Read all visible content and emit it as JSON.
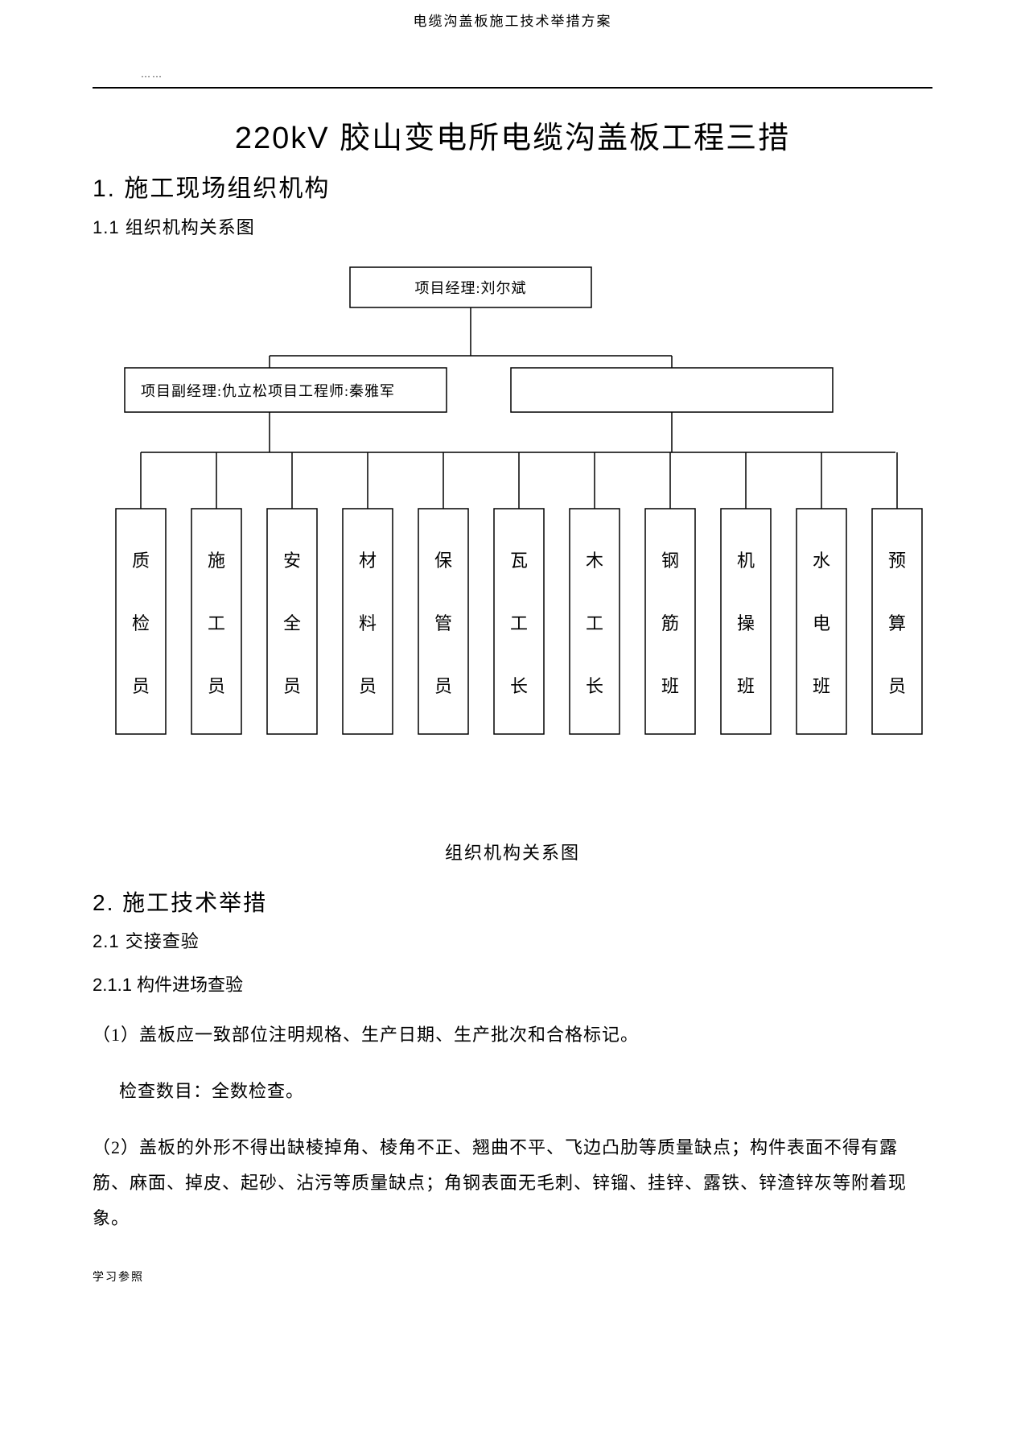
{
  "header": "电缆沟盖板施工技术举措方案",
  "dots": "……",
  "main_title_prefix": "220kV ",
  "main_title_rest": "胶山变电所电缆沟盖板工程三措",
  "s1": {
    "title": "1.  施工现场组织机构",
    "h2": "1.1 组织机构关系图"
  },
  "chart": {
    "top": "项目经理:刘尔斌",
    "mid_left": "项目副经理:仇立松项目工程师:秦雅军",
    "leaves": [
      [
        "质",
        "检",
        "员"
      ],
      [
        "施",
        "工",
        "员"
      ],
      [
        "安",
        "全",
        "员"
      ],
      [
        "材",
        "料",
        "员"
      ],
      [
        "保",
        "管",
        "员"
      ],
      [
        "瓦",
        "工",
        "长"
      ],
      [
        "木",
        "工",
        "长"
      ],
      [
        "钢",
        "筋",
        "班"
      ],
      [
        "机",
        "操",
        "班"
      ],
      [
        "水",
        "电",
        "班"
      ],
      [
        "预",
        "算",
        "员"
      ]
    ],
    "caption": "组织机构关系图"
  },
  "s2": {
    "title": "2. 施工技术举措",
    "h2": "2.1 交接查验",
    "h3": "2.1.1 构件进场查验",
    "p1": "（1）盖板应一致部位注明规格、生产日期、生产批次和合格标记。",
    "p1b": "检查数目：全数检查。",
    "p2": "（2）盖板的外形不得出缺棱掉角、棱角不正、翘曲不平、飞边凸肋等质量缺点；构件表面不得有露筋、麻面、掉皮、起砂、沾污等质量缺点；角钢表面无毛刺、锌镏、挂锌、露铁、锌渣锌灰等附着现象。"
  },
  "footer": "学习参照"
}
